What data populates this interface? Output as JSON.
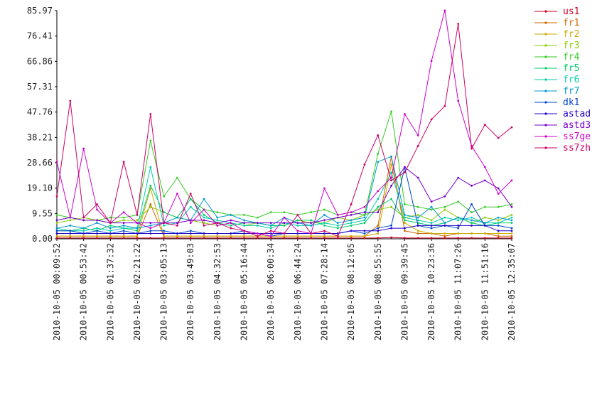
{
  "chart_data": {
    "type": "line",
    "categories": [
      "2010-10-05 00:09:52",
      null,
      "2010-10-05 00:53:42",
      null,
      "2010-10-05 01:37:32",
      null,
      "2010-10-05 02:21:22",
      null,
      "2010-10-05 03:05:13",
      null,
      "2010-10-05 03:49:03",
      null,
      "2010-10-05 04:32:53",
      null,
      "2010-10-05 05:16:44",
      null,
      "2010-10-05 06:00:34",
      null,
      "2010-10-05 06:44:24",
      null,
      "2010-10-05 07:28:14",
      null,
      "2010-10-05 08:12:05",
      null,
      "2010-10-05 08:55:55",
      null,
      "2010-10-05 09:39:45",
      null,
      "2010-10-05 10:23:36",
      null,
      "2010-10-05 11:07:26",
      null,
      "2010-10-05 11:51:16",
      null,
      "2010-10-05 12:35:07"
    ],
    "ylim": [
      0,
      85.97
    ],
    "yticks": [
      {
        "value": 0,
        "label": "0.00"
      },
      9.55,
      {
        "value": 19.1,
        "label": "19.10"
      },
      28.66,
      38.21,
      47.76,
      57.31,
      66.86,
      76.41,
      85.97
    ],
    "grid": false,
    "series": [
      {
        "name": "us1",
        "color": "#cc0022",
        "values": [
          0.3,
          0.3,
          0.3,
          0.3,
          0.3,
          0.3,
          0.3,
          0.3,
          0.3,
          0.3,
          0.3,
          0.3,
          0.3,
          0.3,
          0.3,
          0.3,
          0.3,
          0.3,
          0.3,
          0.3,
          0.3,
          0.3,
          0.3,
          0.3,
          0.3,
          0.5,
          0.3,
          0.3,
          0.3,
          0.3,
          0.3,
          0.3,
          0.3,
          0.3,
          0.3
        ]
      },
      {
        "name": "fr1",
        "color": "#cc6600",
        "values": [
          1,
          1,
          1,
          1,
          1,
          1,
          1,
          13,
          1,
          1,
          1,
          1,
          1,
          1,
          1,
          1,
          1,
          1,
          1,
          1,
          1,
          1,
          1,
          1,
          5,
          31,
          3,
          2,
          2,
          1,
          2,
          2,
          2,
          1,
          1
        ]
      },
      {
        "name": "fr2",
        "color": "#ccaa00",
        "values": [
          1,
          1,
          1,
          1,
          1,
          1,
          1,
          19,
          1,
          1,
          1,
          1,
          1,
          1,
          1,
          1,
          1,
          1,
          1,
          1,
          1,
          1,
          1,
          1,
          2,
          28,
          6,
          3,
          2,
          2,
          2,
          2,
          2,
          2,
          2
        ]
      },
      {
        "name": "fr3",
        "color": "#88cc00",
        "values": [
          6,
          7,
          8,
          7,
          6,
          7,
          7,
          12,
          10,
          8,
          7,
          6,
          5,
          6,
          5,
          6,
          5,
          5,
          7,
          6,
          6,
          8,
          7,
          9,
          11,
          12,
          8,
          9,
          7,
          11,
          8,
          6,
          8,
          7,
          9
        ]
      },
      {
        "name": "fr4",
        "color": "#33cc22",
        "values": [
          9,
          8,
          7,
          7,
          8,
          8,
          9,
          37,
          16,
          23,
          15,
          11,
          10,
          9,
          9,
          8,
          10,
          10,
          9,
          10,
          11,
          9,
          10,
          9,
          32,
          48,
          13,
          12,
          11,
          12,
          14,
          10,
          12,
          12,
          13
        ]
      },
      {
        "name": "fr5",
        "color": "#00cc66",
        "values": [
          3,
          3,
          4,
          3,
          5,
          4,
          3,
          20,
          10,
          8,
          15,
          9,
          6,
          5,
          6,
          6,
          5,
          5,
          7,
          7,
          5,
          4,
          5,
          6,
          12,
          15,
          7,
          6,
          5,
          6,
          8,
          6,
          5,
          6,
          6
        ]
      },
      {
        "name": "fr6",
        "color": "#00ccaa",
        "values": [
          4,
          3,
          3,
          4,
          3,
          4,
          4,
          27,
          5,
          6,
          12,
          8,
          7,
          6,
          5,
          5,
          4,
          6,
          5,
          5,
          6,
          5,
          6,
          7,
          15,
          25,
          8,
          7,
          6,
          8,
          7,
          8,
          6,
          6,
          8
        ]
      },
      {
        "name": "fr7",
        "color": "#0099cc",
        "values": [
          4,
          5,
          4,
          6,
          4,
          5,
          4,
          5,
          6,
          8,
          7,
          15,
          8,
          9,
          7,
          6,
          5,
          8,
          6,
          5,
          9,
          6,
          7,
          8,
          29,
          31,
          9,
          8,
          12,
          6,
          8,
          7,
          6,
          8,
          7
        ]
      },
      {
        "name": "dk1",
        "color": "#0044cc",
        "values": [
          3,
          3,
          2,
          3,
          2,
          3,
          2,
          3,
          3,
          2,
          3,
          2,
          2,
          2,
          3,
          2,
          1,
          2,
          2,
          2,
          2,
          2,
          3,
          2,
          4,
          5,
          27,
          5,
          4,
          5,
          4,
          13,
          5,
          5,
          4
        ]
      },
      {
        "name": "astad",
        "color": "#2200cc",
        "values": [
          2,
          2,
          2,
          2,
          2,
          2,
          2,
          2,
          2,
          2,
          2,
          2,
          2,
          2,
          2,
          2,
          2,
          2,
          2,
          2,
          2,
          2,
          3,
          3,
          3,
          4,
          4,
          5,
          5,
          5,
          5,
          5,
          5,
          3,
          3
        ]
      },
      {
        "name": "astd3",
        "color": "#7700cc",
        "values": [
          7,
          8,
          7,
          7,
          6,
          6,
          6,
          6,
          6,
          6,
          7,
          7,
          6,
          7,
          6,
          6,
          6,
          6,
          6,
          6,
          7,
          8,
          9,
          10,
          10,
          20,
          27,
          23,
          14,
          16,
          23,
          20,
          22,
          19,
          12
        ]
      },
      {
        "name": "ss7ge",
        "color": "#cc00cc",
        "values": [
          29,
          8,
          34,
          11,
          6,
          10,
          6,
          4,
          6,
          17,
          6,
          11,
          5,
          6,
          3,
          2,
          1,
          8,
          3,
          2,
          19,
          9,
          10,
          12,
          18,
          23,
          47,
          39,
          67,
          86,
          52,
          35,
          27,
          17,
          22
        ]
      },
      {
        "name": "ss7zh",
        "color": "#cc0066",
        "values": [
          16,
          52,
          8,
          13,
          6,
          29,
          9,
          47,
          6,
          5,
          17,
          5,
          6,
          4,
          3,
          1,
          3,
          2,
          9,
          2,
          3,
          1,
          13,
          28,
          39,
          22,
          25,
          35,
          45,
          50,
          81,
          34,
          43,
          38,
          42
        ]
      }
    ]
  }
}
